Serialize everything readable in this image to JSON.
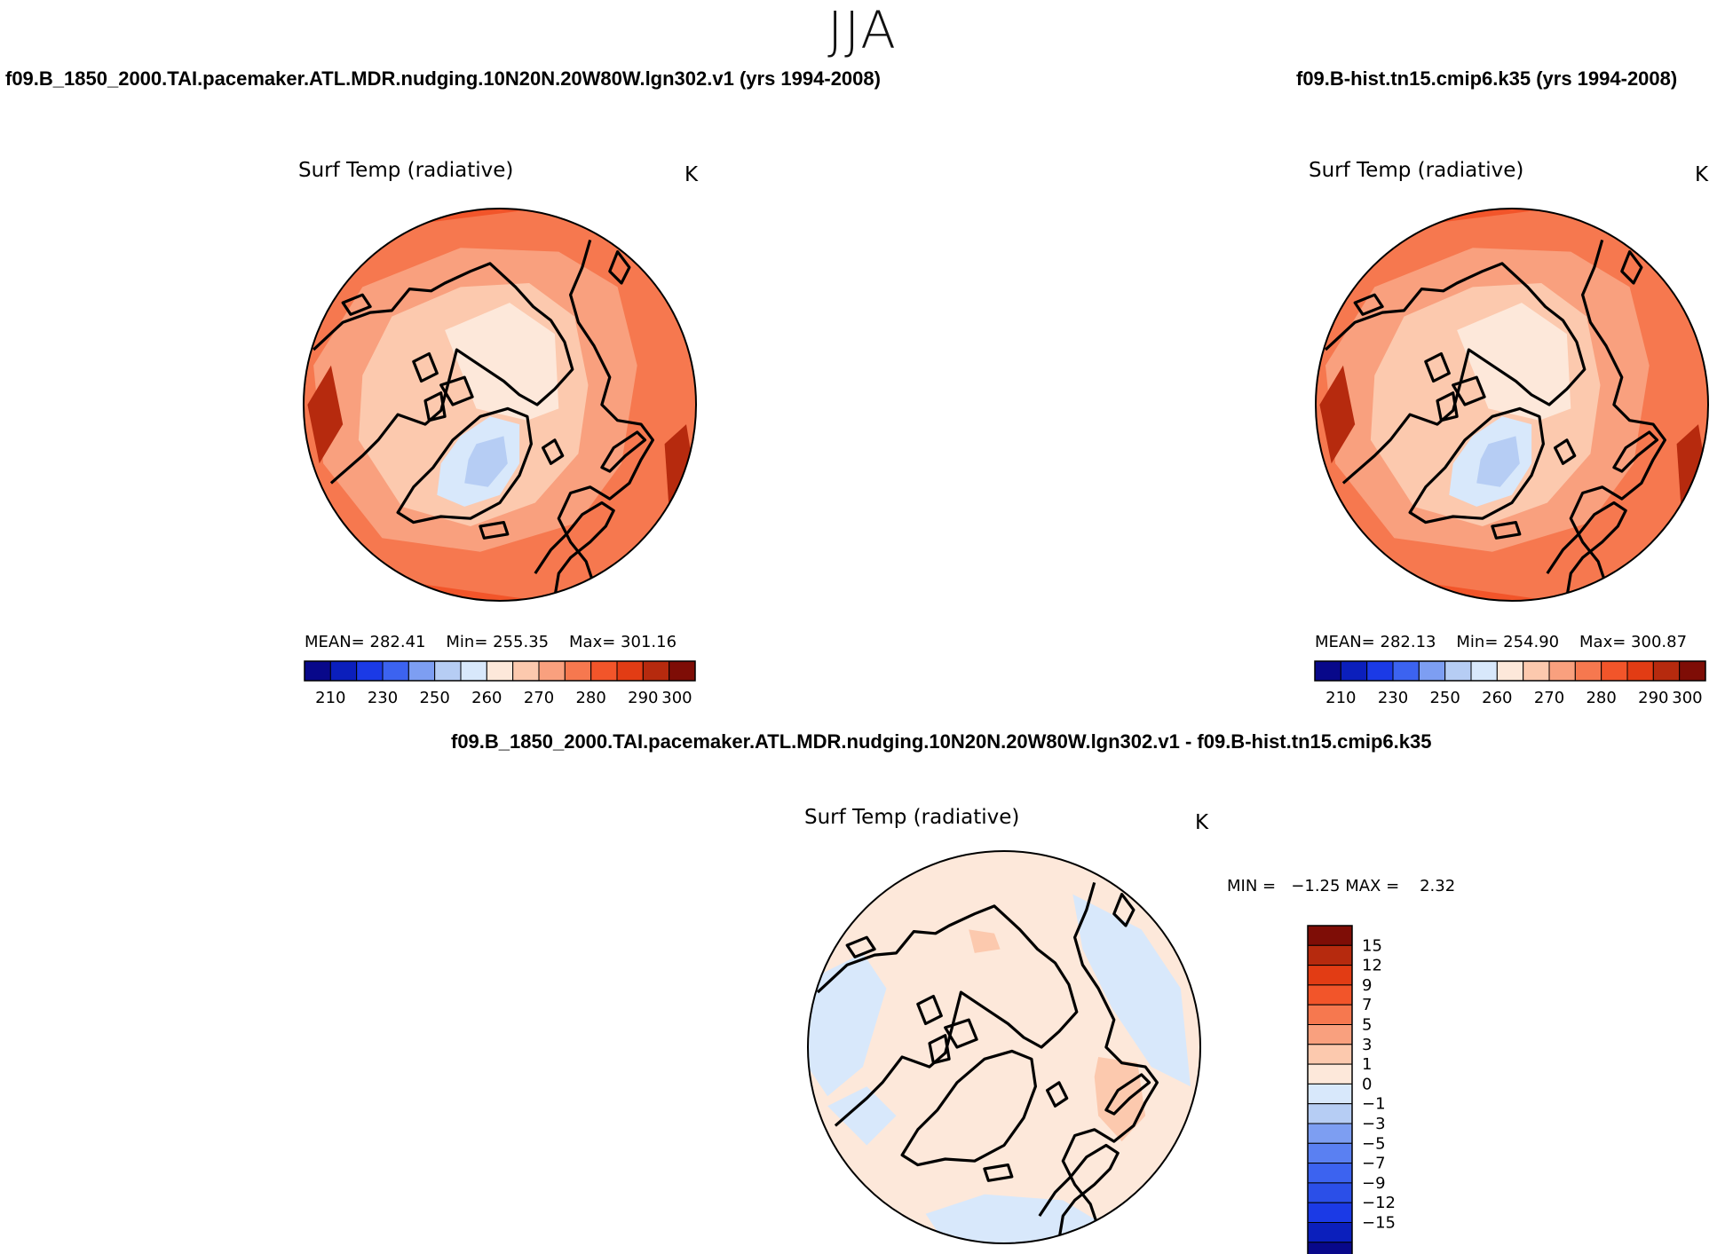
{
  "figure": {
    "title": "JJA",
    "variable": "Surf Temp (radiative)",
    "units": "K"
  },
  "colors": {
    "abs_palette": [
      "#08088a",
      "#0b1fbc",
      "#1b3ae6",
      "#3c63f0",
      "#7d9ef2",
      "#b6cdf4",
      "#d8e8fb",
      "#fde8da",
      "#fcc9ae",
      "#f9a07e",
      "#f6784f",
      "#f2552a",
      "#e23c14",
      "#b62a0e",
      "#7e0d06"
    ],
    "diff_palette": [
      "#08088a",
      "#0b1fbc",
      "#1b3ae6",
      "#2b4fe8",
      "#3c63f0",
      "#5a80f2",
      "#7d9ef2",
      "#b6cdf4",
      "#d8e8fb",
      "#fde8da",
      "#fcc9ae",
      "#f9a07e",
      "#f6784f",
      "#f2552a",
      "#e23c14",
      "#b62a0e",
      "#7e0d06"
    ],
    "land_outline": "#000000"
  },
  "chart_data": [
    {
      "type": "heatmap",
      "projection": "north polar stereographic",
      "case_title": "f09.B_1850_2000.TAI.pacemaker.ATL.MDR.nudging.10N20N.20W80W.lgn302.v1 (yrs 1994-2008)",
      "title": "Surf Temp (radiative)",
      "units": "K",
      "stats": {
        "mean_label": "MEAN=",
        "mean": "282.41",
        "min_label": "Min=",
        "min": "255.35",
        "max_label": "Max=",
        "max": "301.16"
      },
      "colorbar": {
        "orientation": "horizontal",
        "levels": [
          210,
          220,
          230,
          240,
          250,
          255,
          260,
          265,
          270,
          275,
          280,
          285,
          290,
          295,
          300
        ],
        "tick_labels": [
          "210",
          "230",
          "250",
          "260",
          "270",
          "280",
          "290",
          "300"
        ]
      },
      "field": {
        "lowest": "Greenland interior (~255 K)",
        "arctic_ocean": "~272 K",
        "continents": "~290-300 K"
      }
    },
    {
      "type": "heatmap",
      "projection": "north polar stereographic",
      "case_title": "f09.B-hist.tn15.cmip6.k35 (yrs 1994-2008)",
      "title": "Surf Temp (radiative)",
      "units": "K",
      "stats": {
        "mean_label": "MEAN=",
        "mean": "282.13",
        "min_label": "Min=",
        "min": "254.90",
        "max_label": "Max=",
        "max": "300.87"
      },
      "colorbar": {
        "orientation": "horizontal",
        "levels": [
          210,
          220,
          230,
          240,
          250,
          255,
          260,
          265,
          270,
          275,
          280,
          285,
          290,
          295,
          300
        ],
        "tick_labels": [
          "210",
          "230",
          "250",
          "260",
          "270",
          "280",
          "290",
          "300"
        ]
      },
      "field": {
        "lowest": "Greenland interior (~255 K)",
        "arctic_ocean": "~272 K",
        "continents": "~290-300 K"
      }
    },
    {
      "type": "heatmap",
      "projection": "north polar stereographic",
      "case_title": "f09.B_1850_2000.TAI.pacemaker.ATL.MDR.nudging.10N20N.20W80W.lgn302.v1 - f09.B-hist.tn15.cmip6.k35",
      "title": "Surf Temp (radiative)",
      "units": "K",
      "stats": {
        "min_label": "MIN =",
        "min": "−1.25",
        "max_label": "MAX =",
        "max": "2.32"
      },
      "colorbar": {
        "orientation": "vertical",
        "levels": [
          -15,
          -12,
          -9,
          -7,
          -5,
          -3,
          -1,
          0,
          1,
          3,
          5,
          7,
          9,
          12,
          15
        ],
        "tick_labels": [
          "15",
          "12",
          "9",
          "7",
          "5",
          "3",
          "1",
          "0",
          "−1",
          "−3",
          "−5",
          "−7",
          "−9",
          "−12",
          "−15"
        ]
      },
      "field": {
        "range": [
          -1.25,
          2.32
        ],
        "dominant": "0 to 1 K",
        "negative_regions": "0 to −1 K over parts of North America, Siberia and North Atlantic"
      }
    }
  ]
}
